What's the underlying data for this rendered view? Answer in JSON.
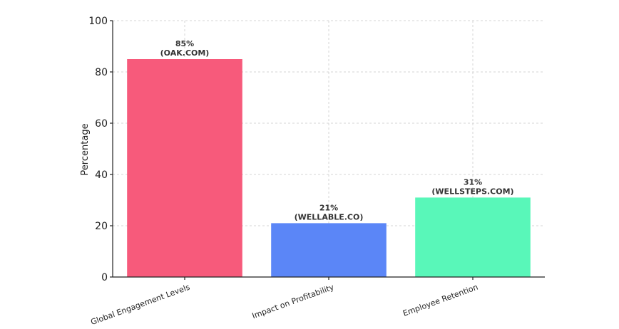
{
  "chart_data": {
    "type": "bar",
    "categories": [
      "Global Engagement Levels",
      "Impact on Profitability",
      "Employee Retention"
    ],
    "values": [
      85,
      21,
      31
    ],
    "data_labels": [
      {
        "value": "85%",
        "source": "(OAK.COM)"
      },
      {
        "value": "21%",
        "source": "(WELLABLE.CO)"
      },
      {
        "value": "31%",
        "source": "(WELLSTEPS.COM)"
      }
    ],
    "colors": [
      "#f75a7b",
      "#5b86f7",
      "#59f7b9"
    ],
    "title": "",
    "xlabel": "",
    "ylabel": "Percentage",
    "ylim": [
      0,
      100
    ],
    "yticks": [
      0,
      20,
      40,
      60,
      80,
      100
    ],
    "grid": true
  }
}
